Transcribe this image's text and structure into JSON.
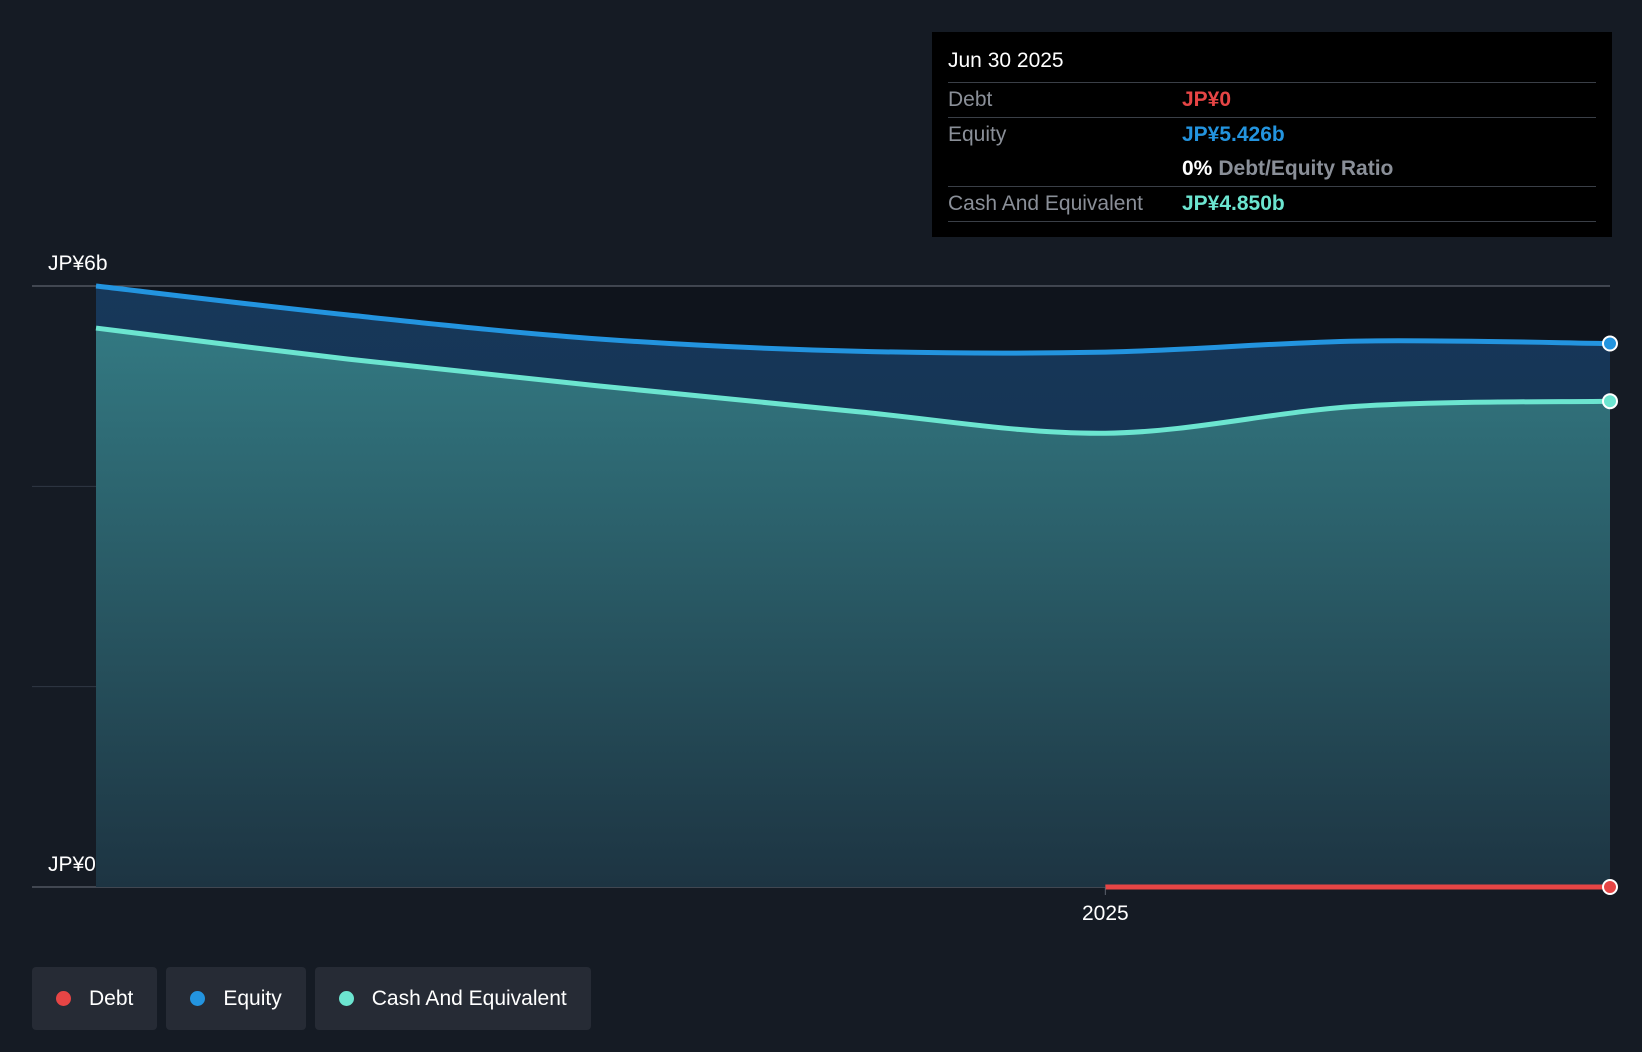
{
  "chart_data": {
    "type": "area",
    "x": [
      2024.0,
      2024.25,
      2024.5,
      2024.75,
      2025.0,
      2025.25,
      2025.5
    ],
    "x_tick_labels": [
      {
        "value": 2025.0,
        "label": "2025"
      }
    ],
    "y_tick_labels": [
      {
        "value": 6,
        "label": "JP¥6b"
      },
      {
        "value": 0,
        "label": "JP¥0"
      }
    ],
    "ylim": [
      0,
      6
    ],
    "xlim": [
      2024.0,
      2025.5
    ],
    "grid_values": [
      0,
      2,
      4,
      6
    ],
    "series": [
      {
        "name": "Equity",
        "color": "#2394df",
        "values": [
          6.0,
          5.71,
          5.47,
          5.35,
          5.34,
          5.45,
          5.426
        ]
      },
      {
        "name": "Cash And Equivalent",
        "color": "#6ce5d0",
        "values": [
          5.58,
          5.27,
          5.0,
          4.75,
          4.53,
          4.8,
          4.85
        ]
      },
      {
        "name": "Debt",
        "color": "#e64545",
        "x": [
          2025.0,
          2025.5
        ],
        "values": [
          0,
          0
        ]
      }
    ]
  },
  "tooltip": {
    "date": "Jun 30 2025",
    "debt_label": "Debt",
    "debt_value": "JP¥0",
    "equity_label": "Equity",
    "equity_value": "JP¥5.426b",
    "ratio_pct": "0%",
    "ratio_label": "Debt/Equity Ratio",
    "cash_label": "Cash And Equivalent",
    "cash_value": "JP¥4.850b"
  },
  "legend": {
    "items": [
      {
        "label": "Debt",
        "color": "#e64545"
      },
      {
        "label": "Equity",
        "color": "#2394df"
      },
      {
        "label": "Cash And Equivalent",
        "color": "#6ce5d0"
      }
    ]
  },
  "colors": {
    "background": "#151b24",
    "plot_highlight": "#0f141c",
    "debt": "#e64545",
    "equity": "#2394df",
    "cash": "#6ce5d0"
  }
}
